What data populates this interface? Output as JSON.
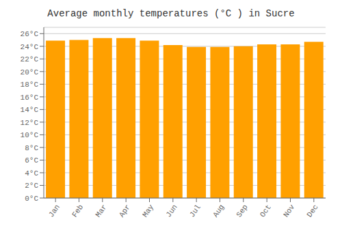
{
  "chart_data": {
    "type": "bar",
    "title": "Average monthly temperatures (°C ) in Sucre",
    "categories": [
      "Jan",
      "Feb",
      "Mar",
      "Apr",
      "May",
      "Jun",
      "Jul",
      "Aug",
      "Sep",
      "Oct",
      "Nov",
      "Dec"
    ],
    "values": [
      24.9,
      25.0,
      25.3,
      25.3,
      24.9,
      24.2,
      23.9,
      23.9,
      24.0,
      24.3,
      24.3,
      24.7
    ],
    "color": "#FFA000",
    "ylim": [
      0,
      27
    ],
    "yticks": [
      {
        "value": 0,
        "label": "0°C"
      },
      {
        "value": 2,
        "label": "2°C"
      },
      {
        "value": 4,
        "label": "4°C"
      },
      {
        "value": 6,
        "label": "6°C"
      },
      {
        "value": 8,
        "label": "8°C"
      },
      {
        "value": 10,
        "label": "10°C"
      },
      {
        "value": 12,
        "label": "12°C"
      },
      {
        "value": 14,
        "label": "14°C"
      },
      {
        "value": 16,
        "label": "16°C"
      },
      {
        "value": 18,
        "label": "18°C"
      },
      {
        "value": 20,
        "label": "20°C"
      },
      {
        "value": 22,
        "label": "22°C"
      },
      {
        "value": 24,
        "label": "24°C"
      },
      {
        "value": 26,
        "label": "26°C"
      }
    ],
    "grid": true
  }
}
